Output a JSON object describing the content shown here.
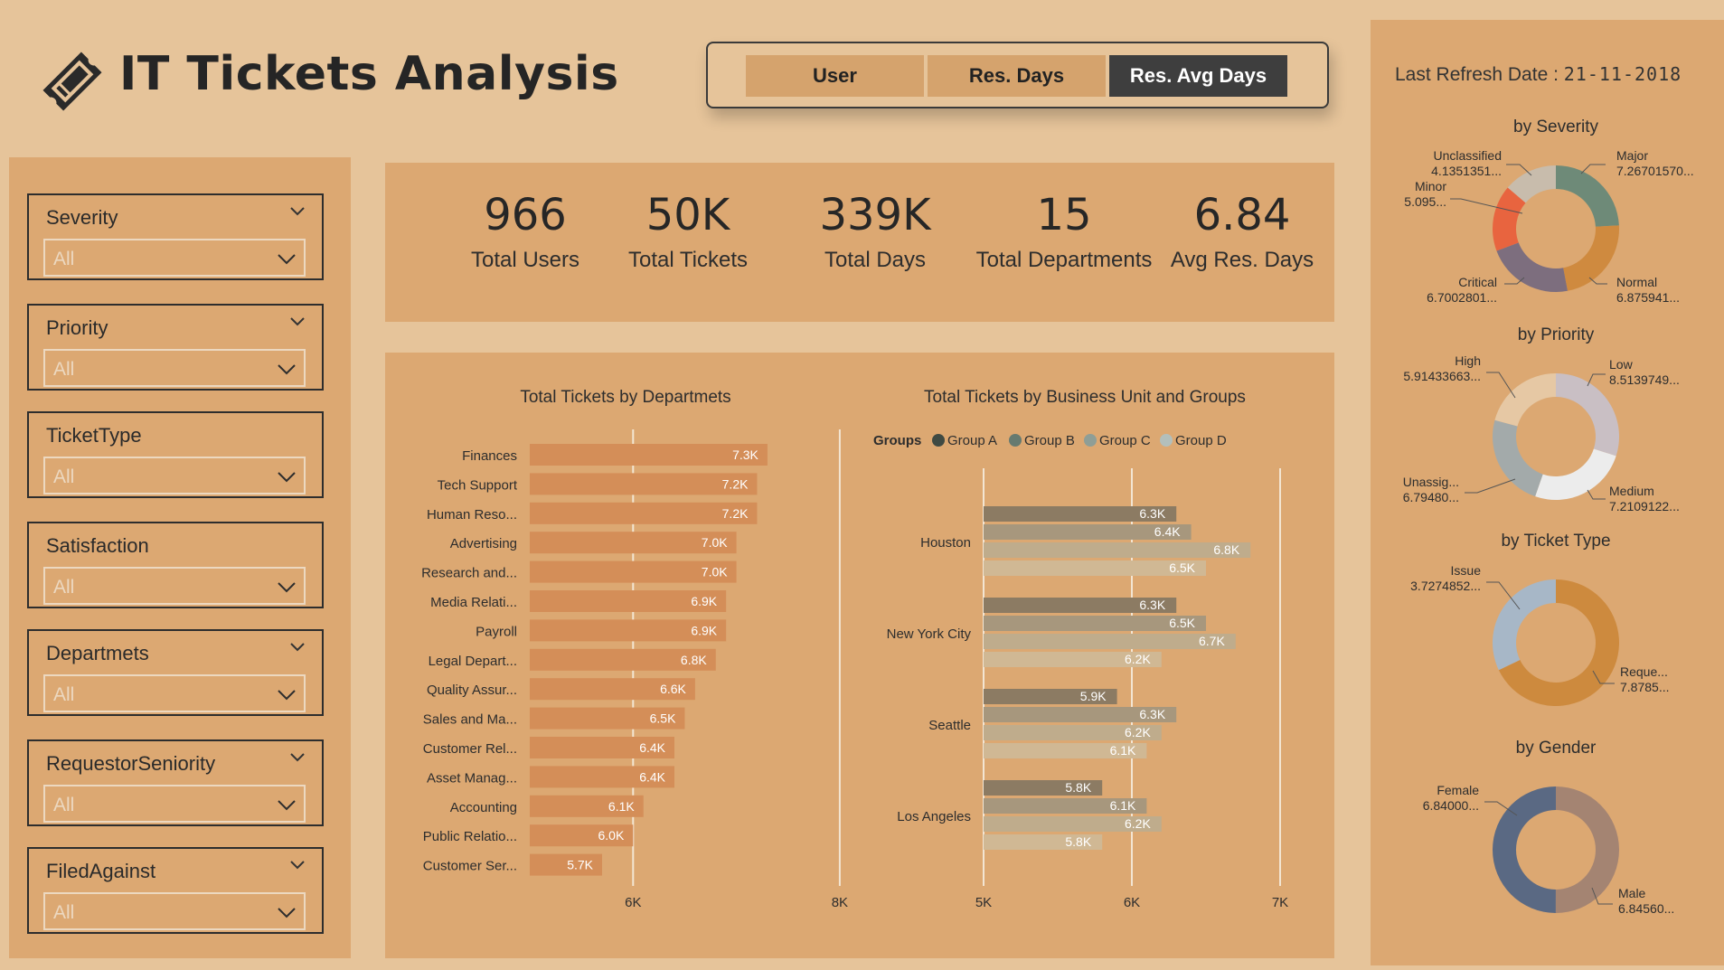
{
  "header": {
    "title": "IT Tickets Analysis",
    "view_buttons": [
      "User",
      "Res. Days",
      "Res. Avg Days"
    ],
    "active_view": "Res. Avg Days"
  },
  "filters": [
    {
      "label": "Severity",
      "value": "All"
    },
    {
      "label": "Priority",
      "value": "All"
    },
    {
      "label": "TicketType",
      "value": "All"
    },
    {
      "label": "Satisfaction",
      "value": "All"
    },
    {
      "label": "Departmets",
      "value": "All"
    },
    {
      "label": "RequestorSeniority",
      "value": "All"
    },
    {
      "label": "FiledAgainst",
      "value": "All"
    }
  ],
  "kpis": [
    {
      "value": "966",
      "label": "Total Users"
    },
    {
      "value": "50K",
      "label": "Total Tickets"
    },
    {
      "value": "339K",
      "label": "Total Days"
    },
    {
      "value": "15",
      "label": "Total Departments"
    },
    {
      "value": "6.84",
      "label": "Avg Res. Days"
    }
  ],
  "refresh": {
    "label": "Last Refresh Date :",
    "value": "21-11-2018"
  },
  "colors": {
    "background": "#e6c49a",
    "panel": "#dca872",
    "dept_bar": "#d48e58",
    "active_button": "#3e3e3e",
    "group_a": "#8c7b63",
    "group_b": "#a7977d",
    "group_c": "#bfac8c",
    "group_d": "#d0b894"
  },
  "chart_data": [
    {
      "type": "bar",
      "orientation": "horizontal",
      "title": "Total Tickets by Departmets",
      "categories": [
        "Finances",
        "Tech Support",
        "Human Reso...",
        "Advertising",
        "Research and...",
        "Media Relati...",
        "Payroll",
        "Legal Depart...",
        "Quality Assur...",
        "Sales and Ma...",
        "Customer Rel...",
        "Asset Manag...",
        "Accounting",
        "Public Relatio...",
        "Customer Ser..."
      ],
      "values": [
        7300,
        7200,
        7200,
        7000,
        7000,
        6900,
        6900,
        6800,
        6600,
        6500,
        6400,
        6400,
        6100,
        6000,
        5700
      ],
      "value_labels": [
        "7.3K",
        "7.2K",
        "7.2K",
        "7.0K",
        "7.0K",
        "6.9K",
        "6.9K",
        "6.8K",
        "6.6K",
        "6.5K",
        "6.4K",
        "6.4K",
        "6.1K",
        "6.0K",
        "5.7K"
      ],
      "x_ticks": [
        "6K",
        "8K"
      ],
      "xlim": [
        5000,
        8000
      ],
      "grid": true
    },
    {
      "type": "bar",
      "orientation": "horizontal",
      "title": "Total Tickets by Business Unit and Groups",
      "legend_title": "Groups",
      "legend_position": "top",
      "categories": [
        "Houston",
        "New York City",
        "Seattle",
        "Los Angeles"
      ],
      "series": [
        {
          "name": "Group A",
          "values": [
            6300,
            6300,
            5900,
            5800
          ],
          "labels": [
            "6.3K",
            "6.3K",
            "5.9K",
            "5.8K"
          ]
        },
        {
          "name": "Group B",
          "values": [
            6400,
            6500,
            6300,
            6100
          ],
          "labels": [
            "6.4K",
            "6.5K",
            "6.3K",
            "6.1K"
          ]
        },
        {
          "name": "Group C",
          "values": [
            6800,
            6700,
            6200,
            6200
          ],
          "labels": [
            "6.8K",
            "6.7K",
            "6.2K",
            "6.2K"
          ]
        },
        {
          "name": "Group D",
          "values": [
            6500,
            6200,
            6100,
            5800
          ],
          "labels": [
            "6.5K",
            "6.2K",
            "6.1K",
            "5.8K"
          ]
        }
      ],
      "x_ticks": [
        "5K",
        "6K",
        "7K"
      ],
      "xlim": [
        5000,
        7000
      ],
      "grid": true
    },
    {
      "type": "pie",
      "donut": true,
      "title": "by Severity",
      "slices": [
        {
          "name": "Major",
          "label": "7.26701570...",
          "value": 7.267,
          "color": "#6e8a78"
        },
        {
          "name": "Normal",
          "label": "6.875941...",
          "value": 6.876,
          "color": "#cf8a3f"
        },
        {
          "name": "Critical",
          "label": "6.7002801...",
          "value": 6.7,
          "color": "#7d6e7e"
        },
        {
          "name": "Minor",
          "label": "5.095...",
          "value": 5.095,
          "color": "#e8643f"
        },
        {
          "name": "Unclassified",
          "label": "4.1351351...",
          "value": 4.135,
          "color": "#c8bcac"
        }
      ]
    },
    {
      "type": "pie",
      "donut": true,
      "title": "by Priority",
      "slices": [
        {
          "name": "Low",
          "label": "8.5139749...",
          "value": 8.514,
          "color": "#c9bfc4"
        },
        {
          "name": "Medium",
          "label": "7.2109122...",
          "value": 7.211,
          "color": "#ececec"
        },
        {
          "name": "Unassig...",
          "label": "6.79480...",
          "value": 6.795,
          "color": "#a3aaaa"
        },
        {
          "name": "High",
          "label": "5.91433663...",
          "value": 5.914,
          "color": "#e6c8a4"
        }
      ]
    },
    {
      "type": "pie",
      "donut": true,
      "title": "by Ticket Type",
      "slices": [
        {
          "name": "Reque...",
          "label": "7.8785...",
          "value": 7.879,
          "color": "#cd8a3e"
        },
        {
          "name": "Issue",
          "label": "3.7274852...",
          "value": 3.727,
          "color": "#a7b7c7"
        }
      ]
    },
    {
      "type": "pie",
      "donut": true,
      "title": "by Gender",
      "slices": [
        {
          "name": "Male",
          "label": "6.84560...",
          "value": 6.846,
          "color": "#a48472"
        },
        {
          "name": "Female",
          "label": "6.84000...",
          "value": 6.84,
          "color": "#5a6983"
        }
      ]
    }
  ]
}
